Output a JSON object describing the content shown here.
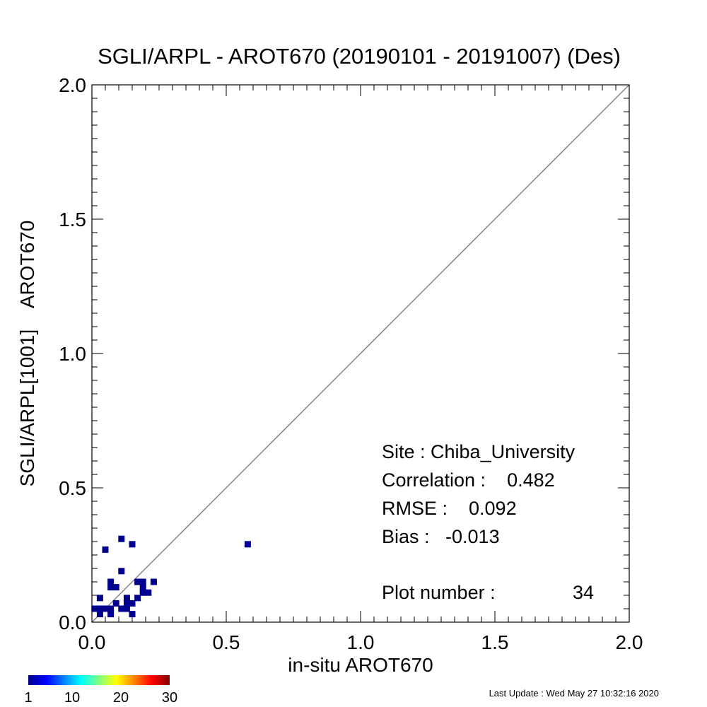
{
  "chart_data": {
    "type": "scatter",
    "title": "SGLI/ARPL - AROT670 (20190101 - 20191007) (Des)",
    "xlabel": "in-situ AROT670",
    "ylabel": "SGLI/ARPL[1001]    AROT670",
    "xlim": [
      0.0,
      2.0
    ],
    "ylim": [
      0.0,
      2.0
    ],
    "x_ticks": [
      "0.0",
      "0.5",
      "1.0",
      "1.5",
      "2.0"
    ],
    "y_ticks": [
      "0.0",
      "0.5",
      "1.0",
      "1.5",
      "2.0"
    ],
    "grid": false,
    "reference_line": "1:1",
    "point_color": "#00008f",
    "points": [
      {
        "x": 0.01,
        "y": 0.05
      },
      {
        "x": 0.03,
        "y": 0.03
      },
      {
        "x": 0.03,
        "y": 0.05
      },
      {
        "x": 0.03,
        "y": 0.09
      },
      {
        "x": 0.05,
        "y": 0.05
      },
      {
        "x": 0.05,
        "y": 0.27
      },
      {
        "x": 0.07,
        "y": 0.03
      },
      {
        "x": 0.07,
        "y": 0.05
      },
      {
        "x": 0.07,
        "y": 0.13
      },
      {
        "x": 0.07,
        "y": 0.15
      },
      {
        "x": 0.09,
        "y": 0.07
      },
      {
        "x": 0.09,
        "y": 0.13
      },
      {
        "x": 0.11,
        "y": 0.05
      },
      {
        "x": 0.11,
        "y": 0.19
      },
      {
        "x": 0.11,
        "y": 0.31
      },
      {
        "x": 0.13,
        "y": 0.05
      },
      {
        "x": 0.13,
        "y": 0.07
      },
      {
        "x": 0.13,
        "y": 0.09
      },
      {
        "x": 0.15,
        "y": 0.03
      },
      {
        "x": 0.15,
        "y": 0.07
      },
      {
        "x": 0.15,
        "y": 0.29
      },
      {
        "x": 0.17,
        "y": 0.09
      },
      {
        "x": 0.17,
        "y": 0.15
      },
      {
        "x": 0.19,
        "y": 0.11
      },
      {
        "x": 0.19,
        "y": 0.13
      },
      {
        "x": 0.19,
        "y": 0.15
      },
      {
        "x": 0.21,
        "y": 0.11
      },
      {
        "x": 0.23,
        "y": 0.15
      },
      {
        "x": 0.58,
        "y": 0.29
      }
    ],
    "stats": {
      "site": "Site : Chiba_University",
      "correlation": "Correlation :    0.482",
      "rmse": "RMSE :    0.092",
      "bias": "Bias :   -0.013",
      "plot_number": "Plot number :",
      "plot_number_value": "34"
    },
    "colorbar": {
      "colors": [
        "#00008f",
        "#0000ff",
        "#0080ff",
        "#00ffff",
        "#80ff80",
        "#ffff00",
        "#ff8000",
        "#ff0000",
        "#800000"
      ],
      "tick_labels": [
        "1",
        "10",
        "20",
        "30"
      ],
      "range": [
        1,
        30
      ]
    },
    "footer": "Last Update : Wed May 27 10:32:16 2020"
  }
}
